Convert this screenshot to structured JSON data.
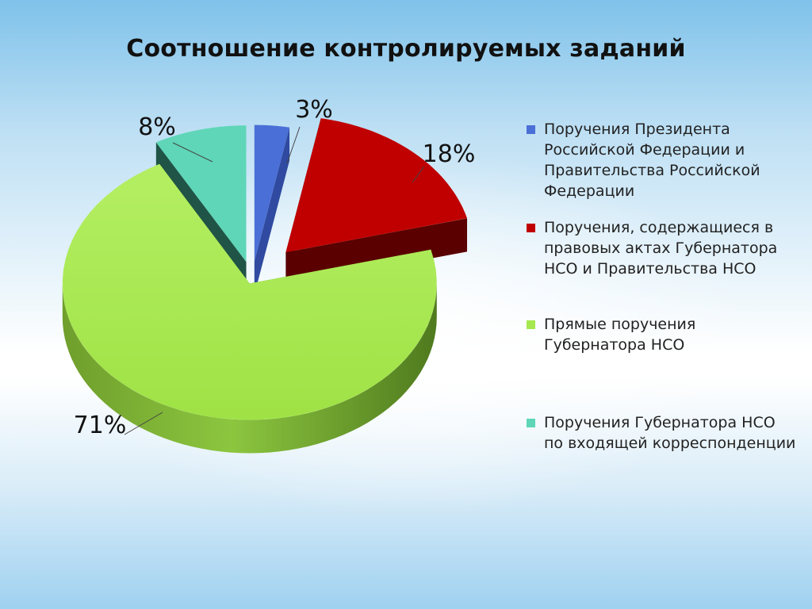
{
  "chart_data": {
    "type": "pie",
    "title": "Соотношение контролируемых заданий",
    "slices": [
      {
        "label": "Поручения Президента Российской Федерации и Правительства Российской Федерации",
        "value": 3,
        "value_label": "3%",
        "color": "#4a6fd6"
      },
      {
        "label": "Поручения, содержащиеся в правовых актах Губернатора НСО и Правительства НСО",
        "value": 18,
        "value_label": "18%",
        "color": "#c00000"
      },
      {
        "label": "Прямые поручения Губернатора НСО",
        "value": 71,
        "value_label": "71%",
        "color": "#a5e84f"
      },
      {
        "label": "Поручения Губернатора НСО по входящей корреспонденции",
        "value": 8,
        "value_label": "8%",
        "color": "#5fd6b8"
      }
    ],
    "legend_position": "right",
    "style": "3d exploded pie"
  }
}
